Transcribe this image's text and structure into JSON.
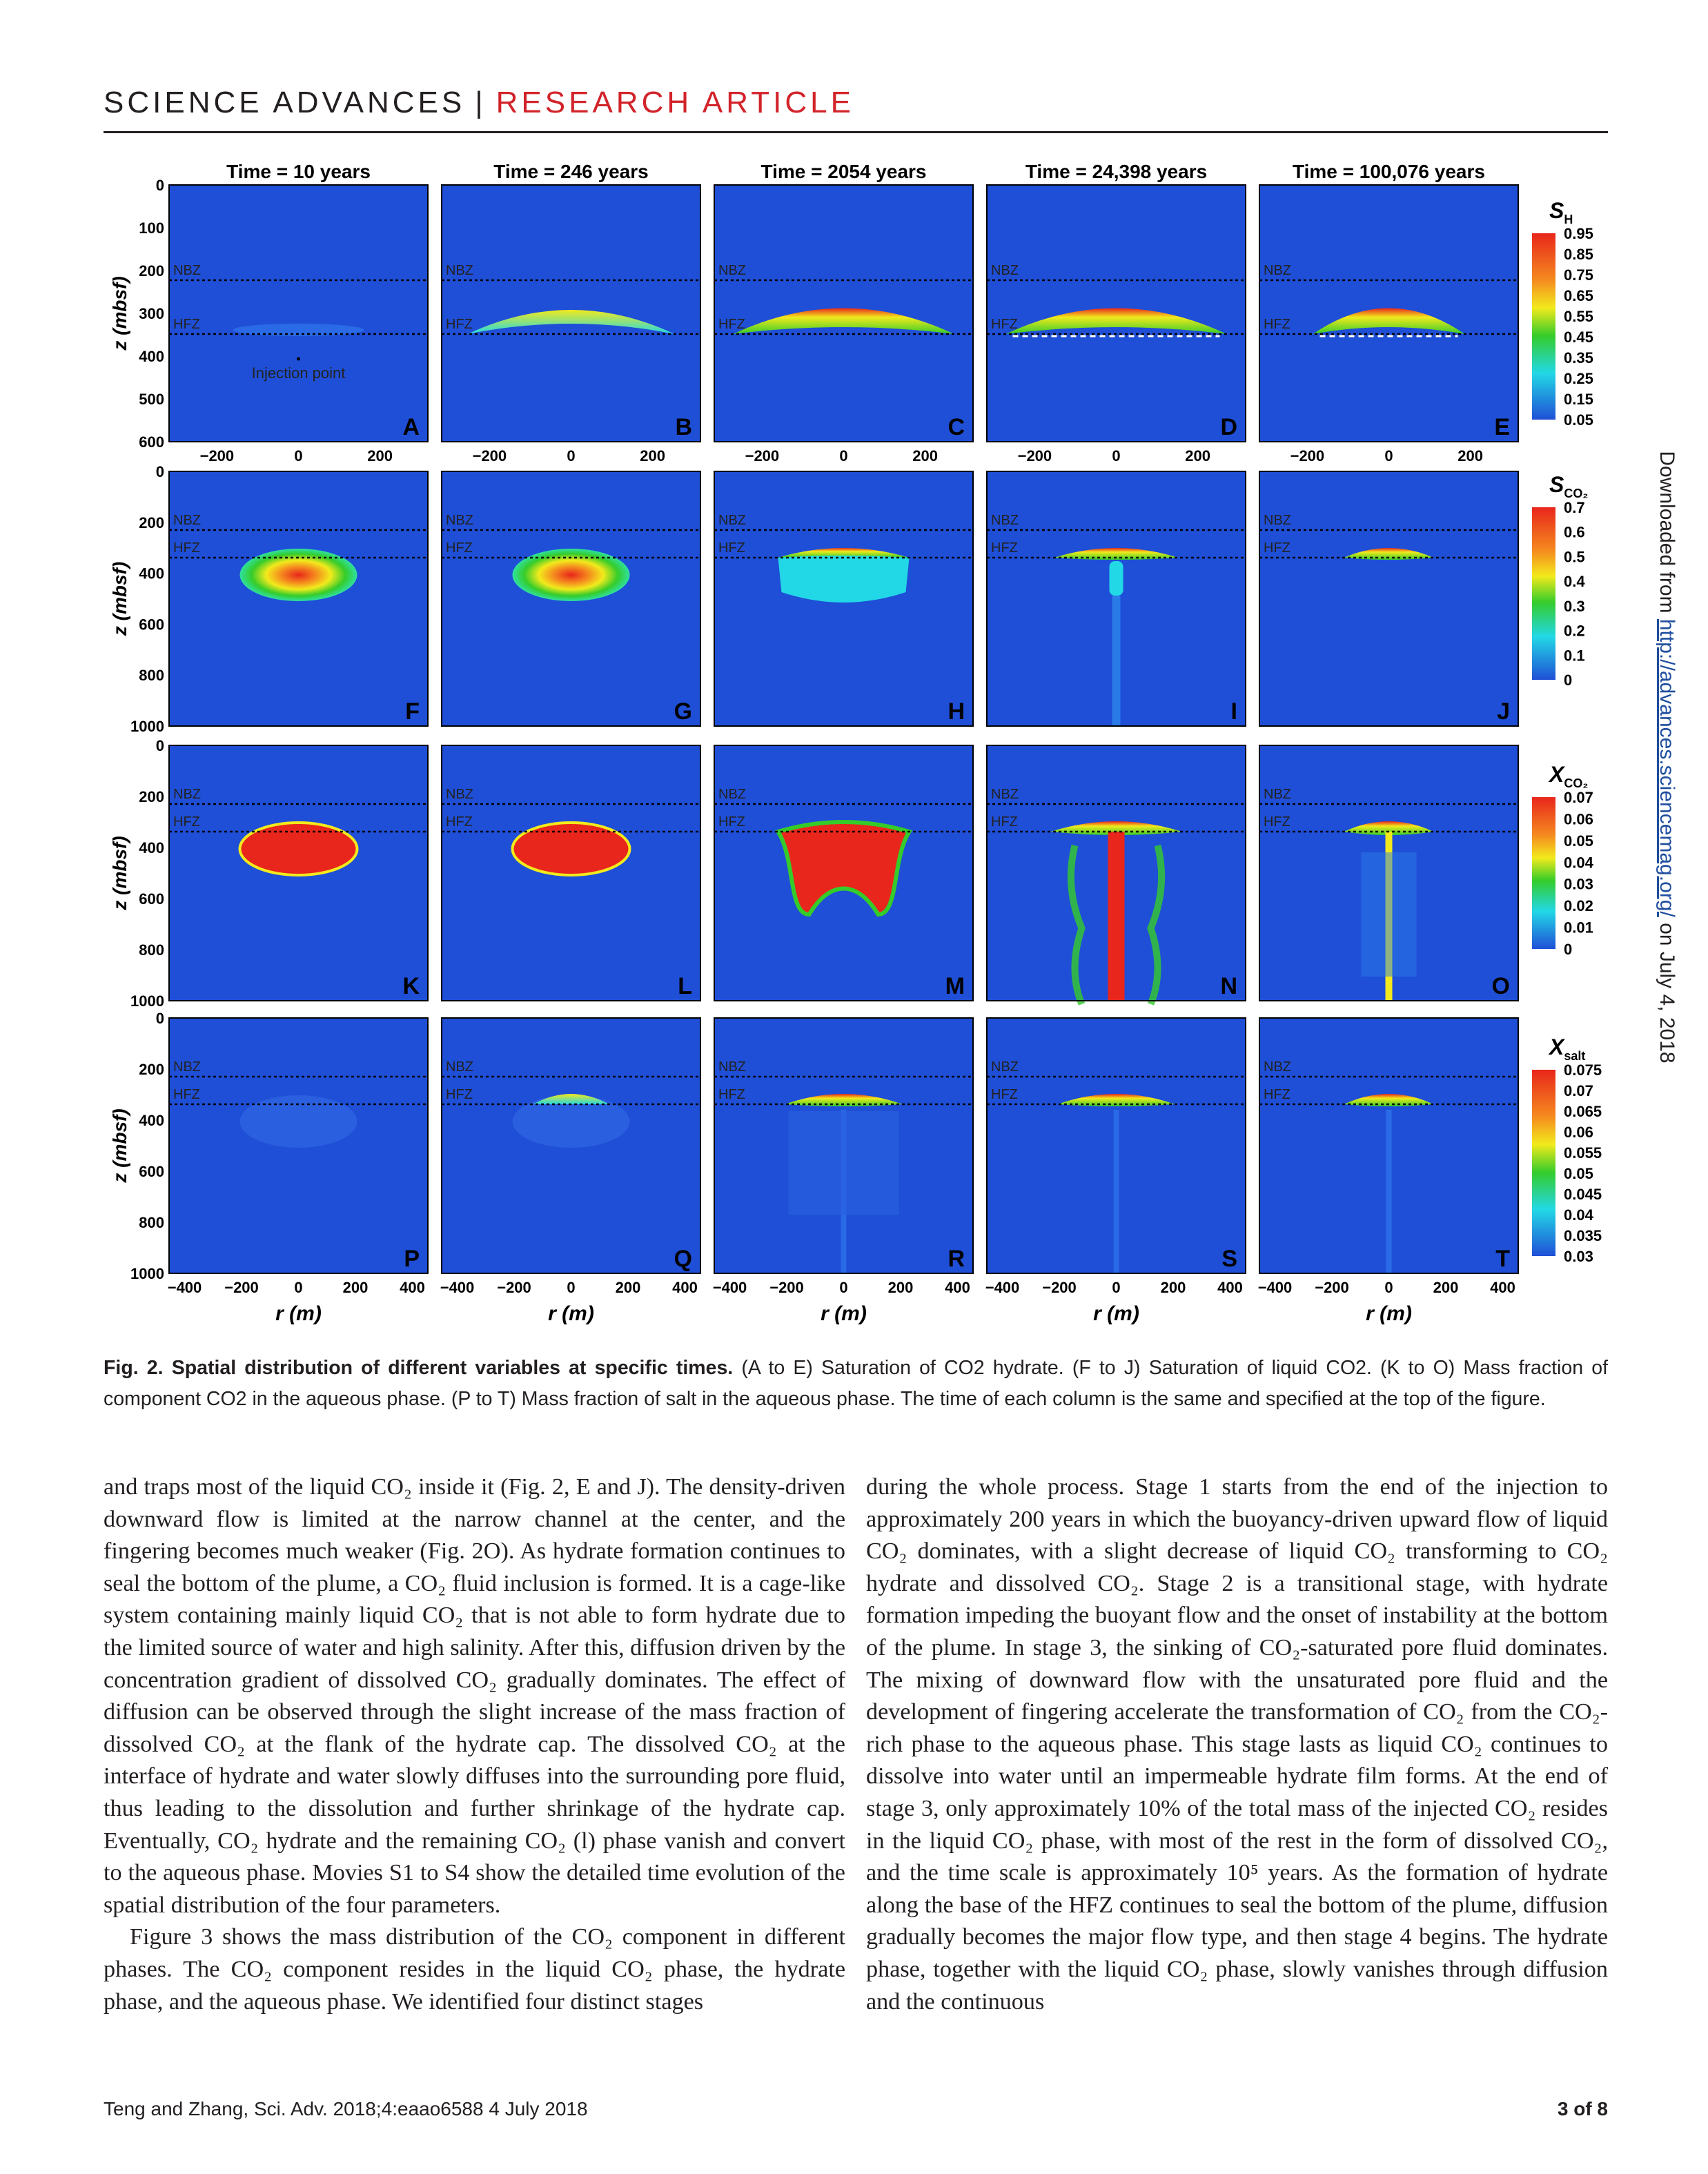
{
  "header": {
    "journal": "SCIENCE ADVANCES",
    "separator": "|",
    "section": "RESEARCH ARTICLE"
  },
  "side_note": {
    "prefix": "Downloaded from ",
    "link": "http://advances.sciencemag.org/",
    "suffix": " on July 4, 2018"
  },
  "figure": {
    "times": [
      "Time = 10 years",
      "Time = 246 years",
      "Time = 2054 years",
      "Time = 24,398 years",
      "Time = 100,076 years"
    ],
    "panel_letters": [
      [
        "A",
        "B",
        "C",
        "D",
        "E"
      ],
      [
        "F",
        "G",
        "H",
        "I",
        "J"
      ],
      [
        "K",
        "L",
        "M",
        "N",
        "O"
      ],
      [
        "P",
        "Q",
        "R",
        "S",
        "T"
      ]
    ],
    "zone_labels": {
      "nbz": "NBZ",
      "hfz": "HFZ"
    },
    "injection_label": "Injection point",
    "y_axis_title": "z (mbsf)",
    "x_axis_title": "r (m)",
    "row1_y_ticks": [
      "0",
      "100",
      "200",
      "300",
      "400",
      "500",
      "600"
    ],
    "row1_x_ticks": [
      "−200",
      "0",
      "200"
    ],
    "rows_y_ticks": [
      "0",
      "200",
      "400",
      "600",
      "800",
      "1000"
    ],
    "row4_x_ticks": [
      "−400",
      "−200",
      "0",
      "200",
      "400"
    ],
    "colorbars": [
      {
        "name": "S",
        "sub": "H",
        "ticks": [
          "0.95",
          "0.85",
          "0.75",
          "0.65",
          "0.55",
          "0.45",
          "0.35",
          "0.25",
          "0.15",
          "0.05"
        ]
      },
      {
        "name": "S",
        "sub": "CO₂",
        "ticks": [
          "0.7",
          "0.6",
          "0.5",
          "0.4",
          "0.3",
          "0.2",
          "0.1",
          "0"
        ]
      },
      {
        "name": "X",
        "sub": "CO₂",
        "ticks": [
          "0.07",
          "0.06",
          "0.05",
          "0.04",
          "0.03",
          "0.02",
          "0.01",
          "0"
        ]
      },
      {
        "name": "X",
        "sub": "salt",
        "ticks": [
          "0.075",
          "0.07",
          "0.065",
          "0.06",
          "0.055",
          "0.05",
          "0.045",
          "0.04",
          "0.035",
          "0.03"
        ]
      }
    ],
    "colors": {
      "background_blue": "#1f4fd6",
      "red": "#e8261b",
      "orange": "#f58a1f",
      "yellow": "#f2ea1c",
      "green": "#35cc2a",
      "cyan": "#22d8e6"
    }
  },
  "caption": {
    "label": "Fig. 2. Spatial distribution of different variables at specific times.",
    "text": " (A to E) Saturation of CO2 hydrate. (F to J) Saturation of liquid CO2. (K to O) Mass fraction of component CO2 in the aqueous phase. (P to T) Mass fraction of salt in the aqueous phase. The time of each column is the same and specified at the top of the figure."
  },
  "body_left": [
    "and traps most of the liquid CO₂ inside it (Fig. 2, E and J). The density-driven downward flow is limited at the narrow channel at the center, and the fingering becomes much weaker (Fig. 2O). As hydrate formation continues to seal the bottom of the plume, a CO₂ fluid inclusion is formed. It is a cage-like system containing mainly liquid CO₂ that is not able to form hydrate due to the limited source of water and high salinity. After this, diffusion driven by the concentration gradient of dissolved CO₂ gradually dominates. The effect of diffusion can be observed through the slight increase of the mass fraction of dissolved CO₂ at the flank of the hydrate cap. The dissolved CO₂ at the interface of hydrate and water slowly diffuses into the surrounding pore fluid, thus leading to the dissolution and further shrinkage of the hydrate cap. Eventually, CO₂ hydrate and the remaining CO₂ (l) phase vanish and convert to the aqueous phase. Movies S1 to S4 show the detailed time evolution of the spatial distribution of the four parameters.",
    "Figure 3 shows the mass distribution of the CO₂ component in different phases. The CO₂ component resides in the liquid CO₂ phase, the hydrate phase, and the aqueous phase. We identified four distinct stages"
  ],
  "body_right": [
    "during the whole process. Stage 1 starts from the end of the injection to approximately 200 years in which the buoyancy-driven upward flow of liquid CO₂ dominates, with a slight decrease of liquid CO₂ transforming to CO₂ hydrate and dissolved CO₂. Stage 2 is a transitional stage, with hydrate formation impeding the buoyant flow and the onset of instability at the bottom of the plume. In stage 3, the sinking of CO₂-saturated pore fluid dominates. The mixing of downward flow with the unsaturated pore fluid and the development of fingering accelerate the transformation of CO₂ from the CO₂-rich phase to the aqueous phase. This stage lasts as liquid CO₂ continues to dissolve into water until an impermeable hydrate film forms. At the end of stage 3, only approximately 10% of the total mass of the injected CO₂ resides in the liquid CO₂ phase, with most of the rest in the form of dissolved CO₂, and the time scale is approximately 10⁵ years. As the formation of hydrate along the base of the HFZ continues to seal the bottom of the plume, diffusion gradually becomes the major flow type, and then stage 4 begins. The hydrate phase, together with the liquid CO₂ phase, slowly vanishes through diffusion and the continuous"
  ],
  "footer": {
    "citation": "Teng and Zhang, Sci. Adv. 2018;4:eaao6588     4 July 2018",
    "page": "3 of 8"
  }
}
